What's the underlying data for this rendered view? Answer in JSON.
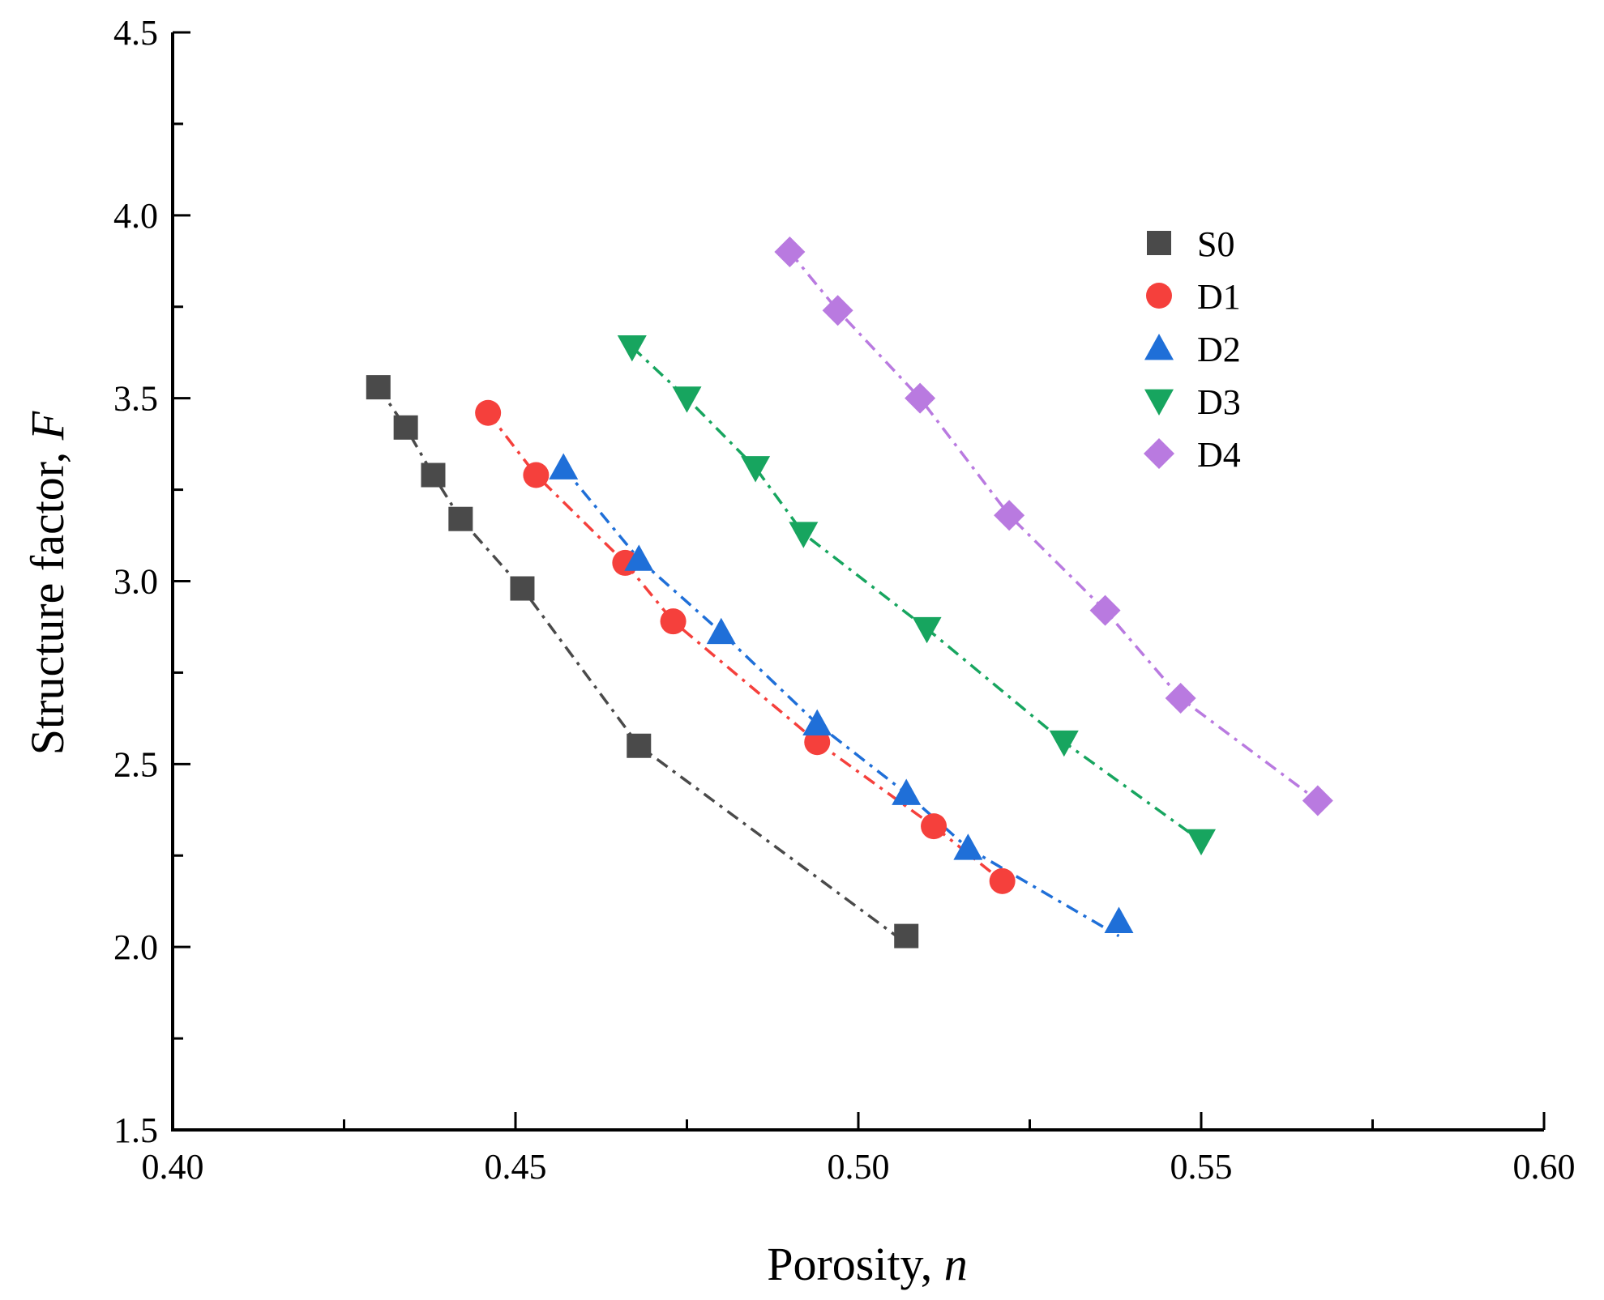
{
  "chart_data": {
    "type": "scatter",
    "xlabel": "Porosity, ",
    "xlabel_var": "n",
    "ylabel": "Structure factor, ",
    "ylabel_var": "F",
    "xlim": [
      0.4,
      0.6
    ],
    "ylim": [
      1.5,
      4.5
    ],
    "x_ticks": [
      "0.40",
      "0.45",
      "0.50",
      "0.55",
      "0.60"
    ],
    "y_ticks": [
      "1.5",
      "2.0",
      "2.5",
      "3.0",
      "3.5",
      "4.0",
      "4.5"
    ],
    "grid": false,
    "legend_position": "top-right",
    "series": [
      {
        "name": "S0",
        "marker": "square",
        "color": "#4a4a4a",
        "x": [
          0.43,
          0.434,
          0.438,
          0.442,
          0.451,
          0.468,
          0.507
        ],
        "y": [
          3.53,
          3.42,
          3.29,
          3.17,
          2.98,
          2.55,
          2.03
        ],
        "fit_x": [
          0.43,
          0.507
        ],
        "fit_y": [
          3.53,
          2.01
        ]
      },
      {
        "name": "D1",
        "marker": "circle",
        "color": "#f5403c",
        "x": [
          0.446,
          0.453,
          0.466,
          0.473,
          0.494,
          0.511,
          0.521
        ],
        "y": [
          3.46,
          3.29,
          3.05,
          2.89,
          2.56,
          2.33,
          2.18
        ],
        "fit_x": [
          0.446,
          0.521
        ],
        "fit_y": [
          3.46,
          2.18
        ]
      },
      {
        "name": "D2",
        "marker": "triangle-up",
        "color": "#1f6fd8",
        "x": [
          0.457,
          0.468,
          0.48,
          0.494,
          0.507,
          0.516,
          0.538
        ],
        "y": [
          3.31,
          3.06,
          2.86,
          2.61,
          2.42,
          2.27,
          2.07
        ],
        "fit_x": [
          0.457,
          0.538
        ],
        "fit_y": [
          3.31,
          2.03
        ]
      },
      {
        "name": "D3",
        "marker": "triangle-down",
        "color": "#17a55f",
        "x": [
          0.467,
          0.475,
          0.485,
          0.492,
          0.51,
          0.53,
          0.55
        ],
        "y": [
          3.64,
          3.5,
          3.31,
          3.13,
          2.87,
          2.56,
          2.29
        ],
        "fit_x": [
          0.467,
          0.55
        ],
        "fit_y": [
          3.64,
          2.29
        ]
      },
      {
        "name": "D4",
        "marker": "diamond",
        "color": "#b97ae0",
        "x": [
          0.49,
          0.497,
          0.509,
          0.522,
          0.536,
          0.547,
          0.567
        ],
        "y": [
          3.9,
          3.74,
          3.5,
          3.18,
          2.92,
          2.68,
          2.4
        ],
        "fit_x": [
          0.49,
          0.567
        ],
        "fit_y": [
          3.9,
          2.4
        ]
      }
    ]
  }
}
